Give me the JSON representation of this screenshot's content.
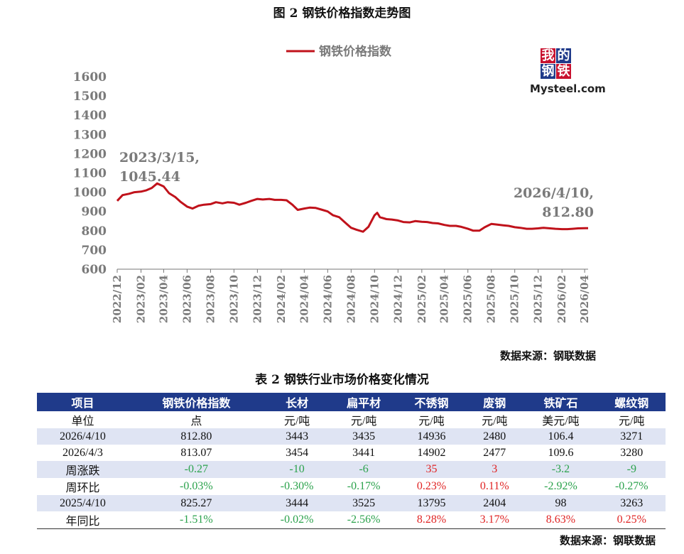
{
  "figure_title": "图 2 钢铁价格指数走势图",
  "logo": {
    "tiles": [
      "我",
      "的",
      "钢",
      "铁"
    ],
    "word": "Mysteel.com",
    "tile_colors": [
      "#c8102e",
      "#1f3a8a",
      "#1f3a8a",
      "#c8102e"
    ]
  },
  "source_note": "数据来源：钢联数据",
  "chart_data": {
    "type": "line",
    "series": [
      {
        "name": "钢铁价格指数",
        "color": "#c0121b",
        "x": [
          "2022-12-01",
          "2022-12-15",
          "2023-01-01",
          "2023-01-15",
          "2023-02-01",
          "2023-02-15",
          "2023-03-01",
          "2023-03-15",
          "2023-04-01",
          "2023-04-15",
          "2023-05-01",
          "2023-05-15",
          "2023-06-01",
          "2023-06-15",
          "2023-07-01",
          "2023-07-15",
          "2023-08-01",
          "2023-08-15",
          "2023-09-01",
          "2023-09-15",
          "2023-10-01",
          "2023-10-15",
          "2023-11-01",
          "2023-11-15",
          "2023-12-01",
          "2023-12-15",
          "2024-01-01",
          "2024-01-15",
          "2024-02-01",
          "2024-02-15",
          "2024-03-01",
          "2024-03-15",
          "2024-04-01",
          "2024-04-15",
          "2024-05-01",
          "2024-05-15",
          "2024-06-01",
          "2024-06-15",
          "2024-07-01",
          "2024-07-15",
          "2024-08-01",
          "2024-08-15",
          "2024-09-01",
          "2024-09-15",
          "2024-10-01",
          "2024-10-08",
          "2024-10-15",
          "2024-11-01",
          "2024-11-15",
          "2024-12-01",
          "2024-12-15",
          "2025-01-01",
          "2025-01-15",
          "2025-02-01",
          "2025-02-15",
          "2025-03-01",
          "2025-03-15",
          "2025-04-01",
          "2025-04-15",
          "2025-05-01",
          "2025-05-15",
          "2025-06-01",
          "2025-06-15",
          "2025-07-01",
          "2025-07-15",
          "2025-08-01",
          "2025-08-15",
          "2025-09-01",
          "2025-09-15",
          "2025-10-01",
          "2025-10-15",
          "2025-11-01",
          "2025-11-15",
          "2025-12-01",
          "2025-12-15",
          "2026-01-01",
          "2026-01-15",
          "2026-02-01",
          "2026-02-15",
          "2026-03-01",
          "2026-03-15",
          "2026-04-03",
          "2026-04-10"
        ],
        "y": [
          955,
          985,
          992,
          1000,
          1003,
          1010,
          1022,
          1045.44,
          1030,
          995,
          975,
          950,
          925,
          915,
          930,
          935,
          938,
          948,
          942,
          948,
          945,
          935,
          945,
          955,
          965,
          962,
          965,
          960,
          960,
          958,
          935,
          908,
          915,
          920,
          918,
          910,
          900,
          880,
          870,
          845,
          815,
          805,
          795,
          820,
          880,
          893,
          870,
          860,
          858,
          853,
          845,
          843,
          850,
          846,
          845,
          840,
          838,
          830,
          825,
          825,
          820,
          810,
          800,
          800,
          818,
          835,
          832,
          828,
          825,
          818,
          815,
          810,
          810,
          812,
          815,
          812,
          810,
          808,
          808,
          810,
          812,
          813.07,
          812.8
        ]
      }
    ],
    "ylim": [
      600,
      1600
    ],
    "yticks": [
      600,
      700,
      800,
      900,
      1000,
      1100,
      1200,
      1300,
      1400,
      1500,
      1600
    ],
    "xticks": [
      "2022/12",
      "2023/02",
      "2023/04",
      "2023/06",
      "2023/08",
      "2023/10",
      "2023/12",
      "2024/02",
      "2024/04",
      "2024/06",
      "2024/08",
      "2024/10",
      "2024/12",
      "2025/02",
      "2025/04",
      "2025/06",
      "2025/08",
      "2025/10",
      "2025/12",
      "2026/02",
      "2026/04"
    ],
    "annotations": [
      {
        "lines": [
          "2023/3/15,",
          "1045.44"
        ]
      },
      {
        "lines": [
          "2026/4/10,",
          "812.80"
        ]
      }
    ]
  },
  "table": {
    "title": "表 2 钢铁行业市场价格变化情况",
    "headers": [
      "项目",
      "钢铁价格指数",
      "长材",
      "扁平材",
      "不锈钢",
      "废钢",
      "铁矿石",
      "螺纹钢"
    ],
    "rows": [
      {
        "cells": [
          "单位",
          "点",
          "元/吨",
          "元/吨",
          "元/吨",
          "元/吨",
          "美元/吨",
          "元/吨"
        ],
        "colors": [
          "",
          "",
          "",
          "",
          "",
          "",
          "",
          ""
        ]
      },
      {
        "cells": [
          "2026/4/10",
          "812.80",
          "3443",
          "3435",
          "14936",
          "2480",
          "106.4",
          "3271"
        ],
        "colors": [
          "",
          "",
          "",
          "",
          "",
          "",
          "",
          ""
        ]
      },
      {
        "cells": [
          "2026/4/3",
          "813.07",
          "3454",
          "3441",
          "14902",
          "2477",
          "109.6",
          "3280"
        ],
        "colors": [
          "",
          "",
          "",
          "",
          "",
          "",
          "",
          ""
        ]
      },
      {
        "cells": [
          "周涨跌",
          "-0.27",
          "-10",
          "-6",
          "35",
          "3",
          "-3.2",
          "-9"
        ],
        "colors": [
          "",
          "neg",
          "neg",
          "neg",
          "pos",
          "pos",
          "neg",
          "neg"
        ]
      },
      {
        "cells": [
          "周环比",
          "-0.03%",
          "-0.30%",
          "-0.17%",
          "0.23%",
          "0.11%",
          "-2.92%",
          "-0.27%"
        ],
        "colors": [
          "",
          "neg",
          "neg",
          "neg",
          "pos",
          "pos",
          "neg",
          "neg"
        ]
      },
      {
        "cells": [
          "2025/4/10",
          "825.27",
          "3444",
          "3525",
          "13795",
          "2404",
          "98",
          "3263"
        ],
        "colors": [
          "",
          "",
          "",
          "",
          "",
          "",
          "",
          ""
        ]
      },
      {
        "cells": [
          "年同比",
          "-1.51%",
          "-0.02%",
          "-2.56%",
          "8.28%",
          "3.17%",
          "8.63%",
          "0.25%"
        ],
        "colors": [
          "",
          "neg",
          "neg",
          "neg",
          "pos",
          "pos",
          "pos",
          "pos"
        ]
      }
    ]
  },
  "table_source_note": "数据来源：钢联数据"
}
